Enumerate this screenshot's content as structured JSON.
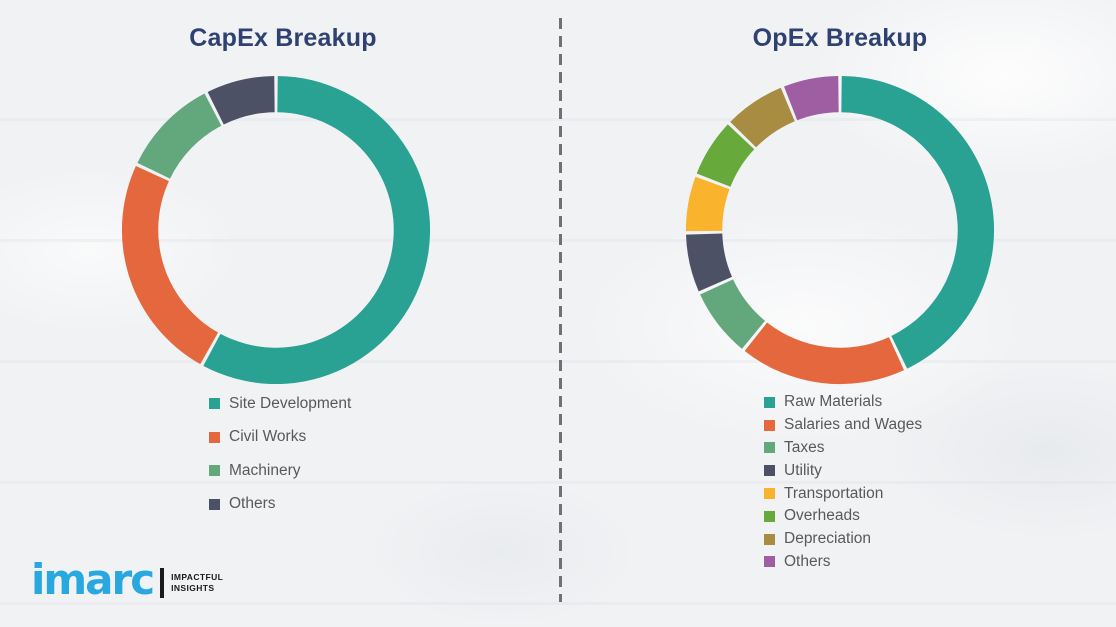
{
  "page": {
    "background_color": "#F1F2F4"
  },
  "styles": {
    "title_color": "#2E4170",
    "legend_text_color": "#595959",
    "segment_gap_color": "#FFFFFF"
  },
  "divider": {
    "style": "dashed-vertical",
    "color": "#6E7277"
  },
  "logo": {
    "brand": "imarc",
    "brand_color": "#29A8E0",
    "tagline_line1": "IMPACTFUL",
    "tagline_line2": "INSIGHTS",
    "tagline_color": "#1A1A1A",
    "bar_color": "#1A1A1A"
  },
  "chart_data": [
    {
      "type": "pie",
      "variant": "donut",
      "title": "CapEx Breakup",
      "labels": [
        "Site Development",
        "Civil Works",
        "Machinery",
        "Others"
      ],
      "values": [
        58,
        24,
        10.5,
        7.5
      ],
      "colors": [
        "#29A294",
        "#E4673E",
        "#63A87C",
        "#4C5166"
      ],
      "start_angle_deg": 0,
      "direction": "clockwise",
      "legend_position": "bottom-left",
      "units": "percent-share-estimated"
    },
    {
      "type": "pie",
      "variant": "donut",
      "title": "OpEx Breakup",
      "labels": [
        "Raw Materials",
        "Salaries and Wages",
        "Taxes",
        "Utility",
        "Transportation",
        "Overheads",
        "Depreciation",
        "Others"
      ],
      "values": [
        43,
        17.8,
        7.5,
        6.4,
        6.1,
        6.4,
        6.7,
        6.1
      ],
      "colors": [
        "#29A294",
        "#E4673E",
        "#63A87C",
        "#4C5166",
        "#F9B32C",
        "#67A93B",
        "#A78C41",
        "#9E5EA1"
      ],
      "start_angle_deg": 0,
      "direction": "clockwise",
      "legend_position": "bottom-left",
      "units": "percent-share-estimated"
    }
  ]
}
